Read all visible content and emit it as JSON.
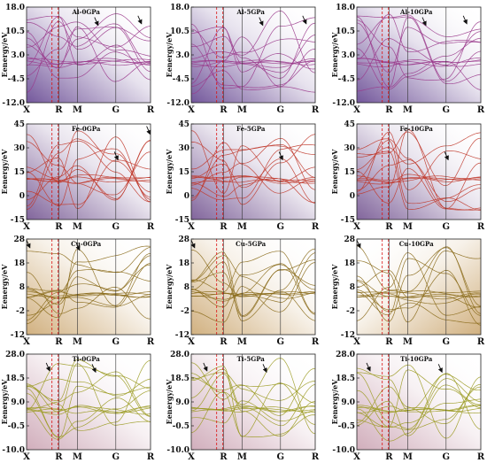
{
  "figure": {
    "panel_grid": {
      "rows": 4,
      "cols": 3
    },
    "high_symmetry_points": [
      "X",
      "R",
      "M",
      "G",
      "R"
    ],
    "ylabel": "Eenergy/eV"
  },
  "chart_data": [
    {
      "type": "line",
      "title": "Al-0GPa",
      "ylabel": "Eenergy/eV",
      "yticks": [
        "18.0",
        "10.5",
        "3.0",
        "-4.5",
        "-12.0"
      ],
      "ylim": [
        -12,
        18
      ],
      "xticks": [
        "X",
        "R",
        "M",
        "G",
        "R"
      ],
      "band_color": "#9a3a8c",
      "tint": "#5b3a8a",
      "tint_side": "left",
      "seed": 1,
      "arrows": [
        {
          "x": 0.57,
          "y": 12.0
        },
        {
          "x": 0.92,
          "y": 12.5
        }
      ]
    },
    {
      "type": "line",
      "title": "Al-5GPa",
      "ylabel": "Eenergy/eV",
      "yticks": [
        "18.0",
        "10.5",
        "3.0",
        "-4.5",
        "-12.0"
      ],
      "ylim": [
        -12,
        18
      ],
      "xticks": [
        "X",
        "R",
        "M",
        "G",
        "R"
      ],
      "band_color": "#9a3a8c",
      "tint": "#5b3a8a",
      "tint_side": "left",
      "seed": 2,
      "arrows": [
        {
          "x": 0.57,
          "y": 12.0
        },
        {
          "x": 0.92,
          "y": 12.5
        }
      ]
    },
    {
      "type": "line",
      "title": "Al-10GPa",
      "ylabel": "Eenergy/eV",
      "yticks": [
        "18.0",
        "10.5",
        "3.0",
        "-4.5",
        "-12.0"
      ],
      "ylim": [
        -12,
        18
      ],
      "xticks": [
        "X",
        "R",
        "M",
        "G",
        "R"
      ],
      "band_color": "#9a3a8c",
      "tint": "#5b3a8a",
      "tint_side": "left",
      "seed": 3,
      "arrows": [
        {
          "x": 0.55,
          "y": 12.0
        },
        {
          "x": 0.88,
          "y": 12.5
        }
      ]
    },
    {
      "type": "line",
      "title": "Fe-0GPa",
      "ylabel": "Eenergy/eV",
      "yticks": [
        "45",
        "30",
        "15",
        "0",
        "-15"
      ],
      "ylim": [
        -15,
        45
      ],
      "xticks": [
        "X",
        "R",
        "M",
        "G",
        "R"
      ],
      "band_color": "#c0392b",
      "tint": "#6b4a8a",
      "tint_side": "left",
      "seed": 4,
      "arrows": [
        {
          "x": 0.73,
          "y": 22.0
        },
        {
          "x": 0.99,
          "y": 38.0
        }
      ]
    },
    {
      "type": "line",
      "title": "Fe-5GPa",
      "ylabel": "Eenergy/eV",
      "yticks": [
        "45",
        "30",
        "15",
        "0",
        "-15"
      ],
      "ylim": [
        -15,
        45
      ],
      "xticks": [
        "X",
        "R",
        "M",
        "G",
        "R"
      ],
      "band_color": "#c0392b",
      "tint": "#6b4a8a",
      "tint_side": "left",
      "seed": 5,
      "arrows": [
        {
          "x": 0.73,
          "y": 22.0
        }
      ]
    },
    {
      "type": "line",
      "title": "Fe-10GPa",
      "ylabel": "Eenergy/eV",
      "yticks": [
        "45",
        "30",
        "15",
        "0",
        "-15"
      ],
      "ylim": [
        -15,
        45
      ],
      "xticks": [
        "X",
        "R",
        "M",
        "G",
        "R"
      ],
      "band_color": "#c0392b",
      "tint": "#6b4a8a",
      "tint_side": "left",
      "seed": 6,
      "arrows": [
        {
          "x": 0.73,
          "y": 22.0
        }
      ]
    },
    {
      "type": "line",
      "title": "Cu-0GPa",
      "ylabel": "Eenergy/eV",
      "yticks": [
        "28",
        "18",
        "8",
        "-2",
        "-12"
      ],
      "ylim": [
        -12,
        28
      ],
      "xticks": [
        "X",
        "R",
        "M",
        "G",
        "R"
      ],
      "band_color": "#8a6a1a",
      "tint": "#c9a36a",
      "tint_side": "left",
      "seed": 7,
      "arrows": [
        {
          "x": 0.02,
          "y": 24.0
        },
        {
          "x": 0.42,
          "y": 23.0
        }
      ]
    },
    {
      "type": "line",
      "title": "Cu-5GPa",
      "ylabel": "Eenergy/eV",
      "yticks": [
        "28",
        "18",
        "8",
        "-2",
        "-12"
      ],
      "ylim": [
        -12,
        28
      ],
      "xticks": [
        "X",
        "R",
        "M",
        "G",
        "R"
      ],
      "band_color": "#8a6a1a",
      "tint": "#c9a36a",
      "tint_side": "left",
      "seed": 8,
      "arrows": [
        {
          "x": 0.02,
          "y": 24.0
        }
      ]
    },
    {
      "type": "line",
      "title": "Cu-10GPa",
      "ylabel": "Eenergy/eV",
      "yticks": [
        "28",
        "18",
        "8",
        "-2",
        "-12"
      ],
      "ylim": [
        -12,
        28
      ],
      "xticks": [
        "X",
        "R",
        "M",
        "G",
        "R"
      ],
      "band_color": "#8a6a1a",
      "tint": "#c9a36a",
      "tint_side": "right",
      "seed": 9,
      "arrows": [
        {
          "x": 0.02,
          "y": 24.0
        }
      ]
    },
    {
      "type": "line",
      "title": "Ti-0GPa",
      "ylabel": "Eenergy/eV",
      "yticks": [
        "28.0",
        "18.5",
        "9.0",
        "-0.5",
        "-10.0"
      ],
      "ylim": [
        -10,
        28
      ],
      "xticks": [
        "X",
        "R",
        "M",
        "G",
        "R"
      ],
      "band_color": "#9a9a20",
      "tint": "#c9a0b0",
      "tint_side": "left",
      "seed": 10,
      "arrows": [
        {
          "x": 0.18,
          "y": 21.0
        },
        {
          "x": 0.55,
          "y": 20.5
        }
      ]
    },
    {
      "type": "line",
      "title": "Ti-5GPa",
      "ylabel": "Eenergy/eV",
      "yticks": [
        "28.0",
        "18.5",
        "9.0",
        "-0.5",
        "-10.0"
      ],
      "ylim": [
        -10,
        28
      ],
      "xticks": [
        "X",
        "R",
        "M",
        "G",
        "R"
      ],
      "band_color": "#9a9a20",
      "tint": "#c9a0b0",
      "tint_side": "left",
      "seed": 11,
      "arrows": [
        {
          "x": 0.12,
          "y": 21.0
        },
        {
          "x": 0.6,
          "y": 20.5
        }
      ]
    },
    {
      "type": "line",
      "title": "Ti-10GPa",
      "ylabel": "Eenergy/eV",
      "yticks": [
        "28.0",
        "18.5",
        "9.0",
        "-0.5",
        "-10.0"
      ],
      "ylim": [
        -10,
        28
      ],
      "xticks": [
        "X",
        "R",
        "M",
        "G",
        "R"
      ],
      "band_color": "#9a9a20",
      "tint": "#c9a0b0",
      "tint_side": "left",
      "seed": 12,
      "arrows": [
        {
          "x": 0.1,
          "y": 21.0
        },
        {
          "x": 0.68,
          "y": 20.5
        }
      ]
    }
  ]
}
